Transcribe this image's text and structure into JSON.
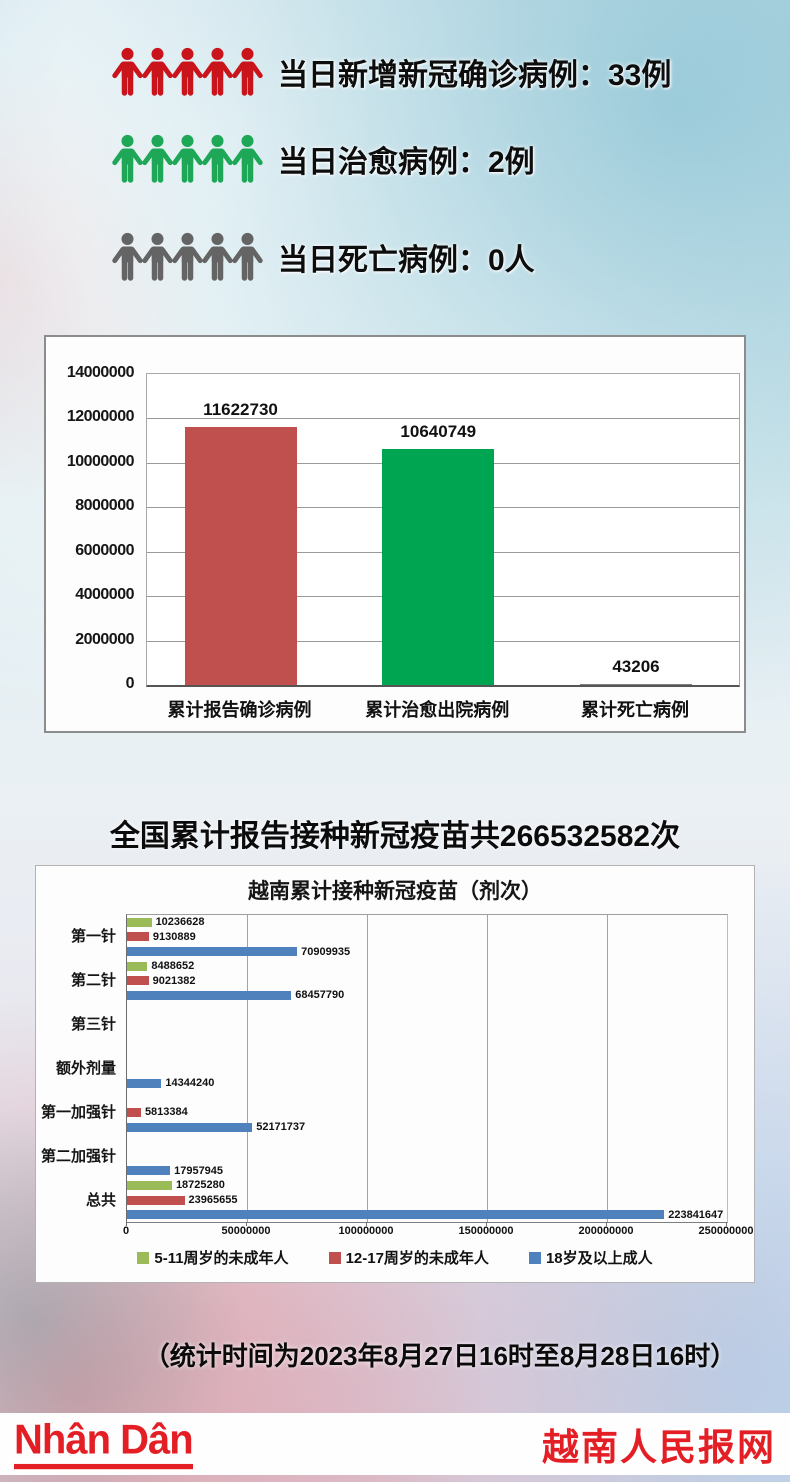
{
  "daily_stats": {
    "items": [
      {
        "text": "当日新增新冠确诊病例：33例",
        "icon_color": "#c9141c",
        "icon_count": 5
      },
      {
        "text": "当日治愈病例：2例",
        "icon_color": "#1ea757",
        "icon_count": 5
      },
      {
        "text": "当日死亡病例：0人",
        "icon_color": "#646464",
        "icon_count": 5
      }
    ]
  },
  "headline": "全国累计报告接种新冠疫苗共266532582次",
  "footnote": "（统计时间为2023年8月27日16时至8月28日16时）",
  "footer": {
    "logo_text": "Nhân Dân",
    "site_name": "越南人民报网",
    "accent_color": "#e31e25",
    "background": "#fefefe"
  },
  "chart_data": [
    {
      "type": "bar",
      "categories": [
        "累计报告确诊病例",
        "累计治愈出院病例",
        "累计死亡病例"
      ],
      "values": [
        11622730,
        10640749,
        43206
      ],
      "bar_colors": [
        "#c0504d",
        "#00a551",
        "#808080"
      ],
      "title": "",
      "xlabel": "",
      "ylabel": "",
      "ylim": [
        0,
        14000000
      ],
      "yticks": [
        0,
        2000000,
        4000000,
        6000000,
        8000000,
        10000000,
        12000000,
        14000000
      ],
      "grid": true,
      "legend_position": "none"
    },
    {
      "type": "bar-horizontal",
      "title": "越南累计接种新冠疫苗（剂次）",
      "categories": [
        "第一针",
        "第二针",
        "第三针",
        "额外剂量",
        "第一加强针",
        "第二加强针",
        "总共"
      ],
      "series": [
        {
          "name": "5-11周岁的未成年人",
          "color": "#9bbb59",
          "values": [
            10236628,
            8488652,
            null,
            null,
            null,
            null,
            18725280
          ]
        },
        {
          "name": "12-17周岁的未成年人",
          "color": "#c0504d",
          "values": [
            9130889,
            9021382,
            null,
            null,
            5813384,
            null,
            23965655
          ]
        },
        {
          "name": "18岁及以上成人",
          "color": "#4f81bd",
          "values": [
            70909935,
            68457790,
            null,
            14344240,
            52171737,
            17957945,
            223841647
          ]
        }
      ],
      "xlim": [
        0,
        250000000
      ],
      "xticks": [
        0,
        50000000,
        100000000,
        150000000,
        200000000,
        250000000
      ],
      "grid": true,
      "legend_position": "bottom"
    }
  ]
}
